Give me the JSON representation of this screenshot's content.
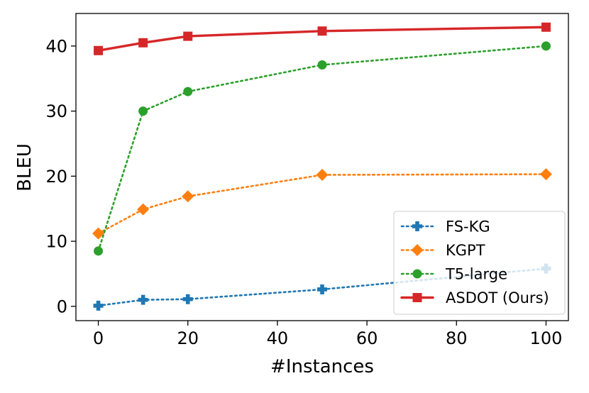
{
  "chart_data": {
    "type": "line",
    "xlabel": "#Instances",
    "ylabel": "BLEU",
    "x": [
      0,
      10,
      20,
      50,
      100
    ],
    "xlim": [
      -5,
      105
    ],
    "ylim": [
      -2.2,
      45
    ],
    "xticks": [
      0,
      20,
      40,
      60,
      80,
      100
    ],
    "yticks": [
      0,
      10,
      20,
      30,
      40
    ],
    "grid": false,
    "legend_position": "lower-right",
    "series": [
      {
        "name": "FS-KG",
        "values": [
          0.1,
          1.0,
          1.1,
          2.6,
          5.8
        ],
        "color": "#1f77b4",
        "linestyle": "dotted",
        "marker": "plus"
      },
      {
        "name": "KGPT",
        "values": [
          11.2,
          14.9,
          16.9,
          20.2,
          20.3
        ],
        "color": "#ff7f0e",
        "linestyle": "dotted",
        "marker": "diamond"
      },
      {
        "name": "T5-large",
        "values": [
          8.5,
          30.0,
          33.0,
          37.1,
          40.0
        ],
        "color": "#2ca02c",
        "linestyle": "dotted",
        "marker": "circle"
      },
      {
        "name": "ASDOT (Ours)",
        "values": [
          39.3,
          40.5,
          41.5,
          42.3,
          42.9
        ],
        "color": "#d62728",
        "linestyle": "solid",
        "marker": "square"
      }
    ]
  }
}
